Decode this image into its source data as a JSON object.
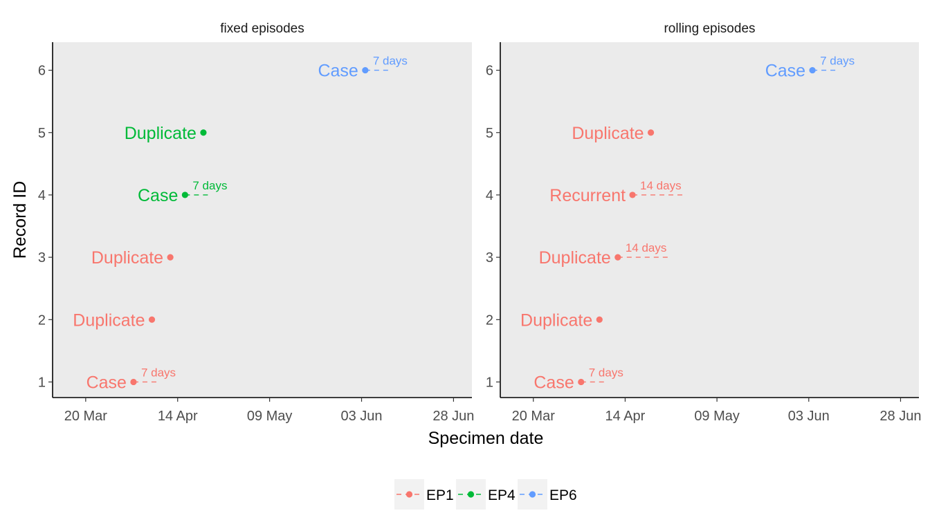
{
  "chart_data": {
    "type": "scatter",
    "xlabel": "Specimen date",
    "ylabel": "Record ID",
    "x_ticks": [
      {
        "date": "2020-03-20",
        "label": "20 Mar"
      },
      {
        "date": "2020-04-14",
        "label": "14 Apr"
      },
      {
        "date": "2020-05-09",
        "label": "09 May"
      },
      {
        "date": "2020-06-03",
        "label": "03 Jun"
      },
      {
        "date": "2020-06-28",
        "label": "28 Jun"
      }
    ],
    "xlim": [
      "2020-03-11",
      "2020-07-03"
    ],
    "y_ticks": [
      1,
      2,
      3,
      4,
      5,
      6
    ],
    "ylim": [
      0.75,
      6.45
    ],
    "colors": {
      "EP1": "#F8766D",
      "EP4": "#00BA38",
      "EP6": "#619CFF"
    },
    "panel_background": "#EBEBEB",
    "grid": false,
    "legend": {
      "position": "bottom",
      "entries": [
        "EP1",
        "EP4",
        "EP6"
      ]
    },
    "panels": [
      {
        "title": "fixed episodes",
        "points": [
          {
            "id": 1,
            "date": "2020-04-02",
            "label": "Case",
            "episode": "EP1",
            "window_end": "2020-04-09",
            "window_label": "7 days"
          },
          {
            "id": 2,
            "date": "2020-04-07",
            "label": "Duplicate",
            "episode": "EP1"
          },
          {
            "id": 3,
            "date": "2020-04-12",
            "label": "Duplicate",
            "episode": "EP1"
          },
          {
            "id": 4,
            "date": "2020-04-16",
            "label": "Case",
            "episode": "EP4",
            "window_end": "2020-04-23",
            "window_label": "7 days"
          },
          {
            "id": 5,
            "date": "2020-04-21",
            "label": "Duplicate",
            "episode": "EP4"
          },
          {
            "id": 6,
            "date": "2020-06-04",
            "label": "Case",
            "episode": "EP6",
            "window_end": "2020-06-11",
            "window_label": "7 days"
          }
        ]
      },
      {
        "title": "rolling episodes",
        "points": [
          {
            "id": 1,
            "date": "2020-04-02",
            "label": "Case",
            "episode": "EP1",
            "window_end": "2020-04-09",
            "window_label": "7 days"
          },
          {
            "id": 2,
            "date": "2020-04-07",
            "label": "Duplicate",
            "episode": "EP1"
          },
          {
            "id": 3,
            "date": "2020-04-12",
            "label": "Duplicate",
            "episode": "EP1",
            "window_end": "2020-04-26",
            "window_label": "14 days"
          },
          {
            "id": 4,
            "date": "2020-04-16",
            "label": "Recurrent",
            "episode": "EP1",
            "window_end": "2020-04-30",
            "window_label": "14 days"
          },
          {
            "id": 5,
            "date": "2020-04-21",
            "label": "Duplicate",
            "episode": "EP1"
          },
          {
            "id": 6,
            "date": "2020-06-04",
            "label": "Case",
            "episode": "EP6",
            "window_end": "2020-06-11",
            "window_label": "7 days"
          }
        ]
      }
    ]
  }
}
